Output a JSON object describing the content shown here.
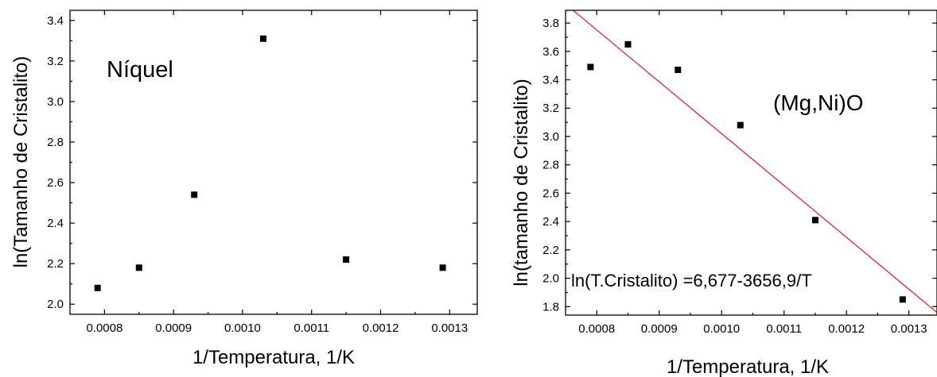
{
  "chart_data": [
    {
      "type": "scatter",
      "annotation": "Níquel",
      "xlabel": "1/Temperatura, 1/K",
      "ylabel": "ln(Tamanho de Cristalito)",
      "xlim": [
        0.00075,
        0.00134
      ],
      "ylim": [
        1.95,
        3.45
      ],
      "xticks": [
        "0.0008",
        "0.0009",
        "0.0010",
        "0.0011",
        "0.0012",
        "0.0013"
      ],
      "yticks": [
        "2.0",
        "2.2",
        "2.4",
        "2.6",
        "2.8",
        "3.0",
        "3.2",
        "3.4"
      ],
      "x": [
        0.00079,
        0.00085,
        0.00093,
        0.00103,
        0.00115,
        0.00129
      ],
      "y": [
        2.08,
        2.18,
        2.54,
        3.31,
        2.22,
        2.18
      ]
    },
    {
      "type": "scatter",
      "annotation": "(Mg,Ni)O",
      "fit_label": "ln(T.Cristalito) =6,677-3656,9/T",
      "fit": {
        "intercept": 6.677,
        "slope": -3656.9,
        "color": "#e8141c"
      },
      "xlabel": "1/Temperatura, 1/K",
      "ylabel": "ln(tamanho de Cristalito)",
      "xlim": [
        0.00075,
        0.001345
      ],
      "ylim": [
        1.74,
        3.89
      ],
      "xticks": [
        "0.0008",
        "0.0009",
        "0.0010",
        "0.0011",
        "0.0012",
        "0.0013"
      ],
      "yticks": [
        "1.8",
        "2.0",
        "2.2",
        "2.4",
        "2.6",
        "2.8",
        "3.0",
        "3.2",
        "3.4",
        "3.6",
        "3.8"
      ],
      "x": [
        0.00079,
        0.00085,
        0.00093,
        0.00103,
        0.00115,
        0.00129
      ],
      "y": [
        3.49,
        3.65,
        3.47,
        3.08,
        2.41,
        1.85
      ]
    }
  ]
}
